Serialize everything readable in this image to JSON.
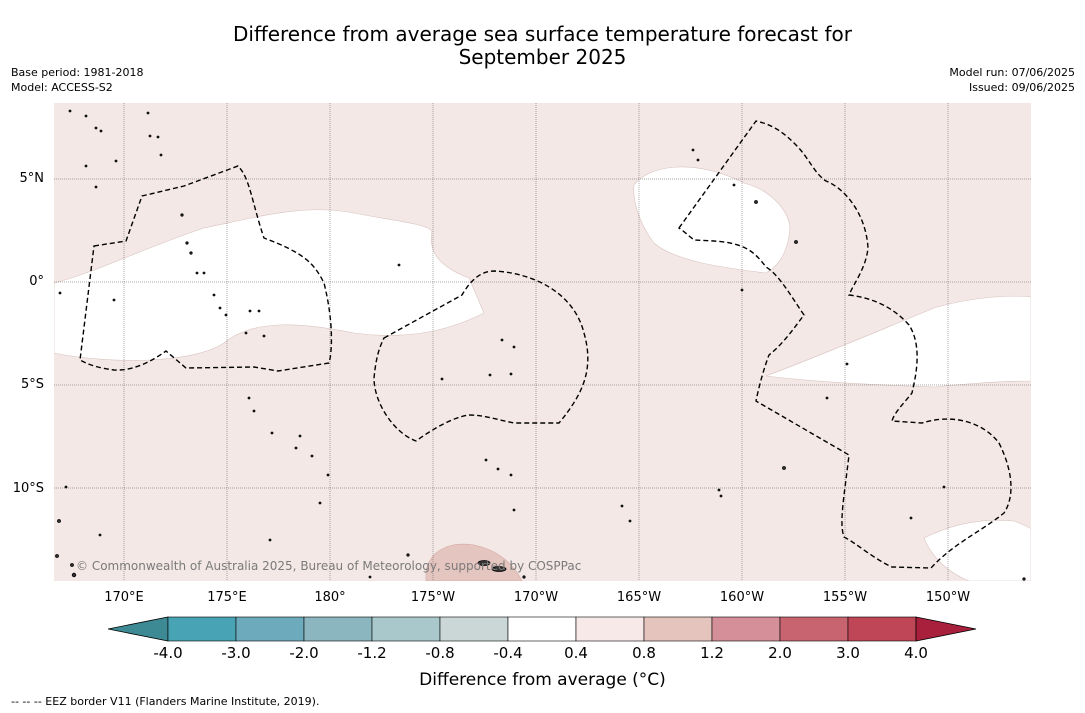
{
  "header": {
    "title_line1": "Difference from average sea surface temperature forecast for",
    "title_line2": "September 2025",
    "base_period": "Base period: 1981-2018",
    "model": "Model: ACCESS-S2",
    "model_run": "Model run: 07/06/2025",
    "issued": "Issued: 09/06/2025"
  },
  "map": {
    "latitude_labels": [
      "5°N",
      "0°",
      "5°S",
      "10°S"
    ],
    "longitude_labels": [
      "170°E",
      "175°E",
      "180°",
      "175°W",
      "170°W",
      "165°W",
      "160°W",
      "155°W",
      "150°W"
    ],
    "copyright": "© Commonwealth of Australia 2025, Bureau of Meteorology, supported by COSPPac",
    "colors": {
      "ocean_anomaly_0_4_to_0_8": "#f4e8e6",
      "neutral": "#ffffff",
      "anomaly_0_8_to_1_2": "#e5c5bf"
    }
  },
  "colorbar": {
    "title": "Difference from average (°C)",
    "ticks": [
      "-4.0",
      "-3.0",
      "-2.0",
      "-1.2",
      "-0.8",
      "-0.4",
      "0.4",
      "0.8",
      "1.2",
      "2.0",
      "3.0",
      "4.0"
    ],
    "colors": [
      "#3d8a94",
      "#48a3b5",
      "#6daabb",
      "#8bb6c0",
      "#a9c8cb",
      "#cbd6d7",
      "#ffffff",
      "#f6e9e7",
      "#e5c4be",
      "#d48f98",
      "#c7646f",
      "#bf4656",
      "#a8203c"
    ]
  },
  "footer": {
    "eez_note": "-- -- -- EEZ border V11 (Flanders Marine Institute, 2019)."
  }
}
